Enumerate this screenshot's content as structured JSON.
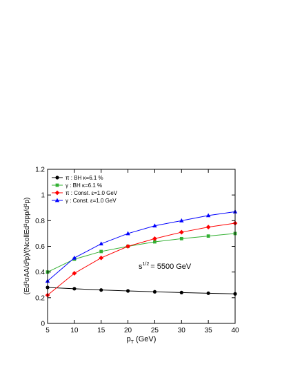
{
  "chart_data": {
    "type": "line",
    "x": [
      5,
      10,
      15,
      20,
      25,
      30,
      35,
      40
    ],
    "xlim": [
      5,
      40
    ],
    "ylim": [
      0,
      1.2
    ],
    "xticks": [
      "5",
      "10",
      "15",
      "20",
      "25",
      "30",
      "35",
      "40"
    ],
    "yticks": [
      "0",
      "0.2",
      "0.4",
      "0.6",
      "0.8",
      "1",
      "1.2"
    ],
    "xlabel": {
      "main": "p",
      "sub": "T",
      "rest": " (GeV)"
    },
    "ylabel": "(Ed³σAA/d³p)/(NcollEd³σpp/d³p)",
    "annotation": {
      "base": "s",
      "sup": "1/2",
      "rest": "= 5500 GeV"
    },
    "grid": false,
    "legend_position": "top-left",
    "series": [
      {
        "name": "π : BH κ=6.1 %",
        "color": "#000000",
        "marker": "circle",
        "values": [
          0.28,
          0.27,
          0.26,
          0.253,
          0.246,
          0.24,
          0.235,
          0.23
        ]
      },
      {
        "name": "γ : BH κ=6.1 %",
        "color": "#33b033",
        "marker": "square",
        "values": [
          0.4,
          0.5,
          0.56,
          0.6,
          0.635,
          0.66,
          0.68,
          0.7
        ]
      },
      {
        "name": "π : Const. ε=1.0 GeV",
        "color": "#ff0000",
        "marker": "diamond",
        "values": [
          0.22,
          0.39,
          0.51,
          0.6,
          0.66,
          0.71,
          0.75,
          0.78
        ]
      },
      {
        "name": "γ : Const. ε=1.0 GeV",
        "color": "#0000ff",
        "marker": "triangle",
        "values": [
          0.33,
          0.51,
          0.62,
          0.7,
          0.76,
          0.8,
          0.84,
          0.87
        ]
      }
    ]
  }
}
